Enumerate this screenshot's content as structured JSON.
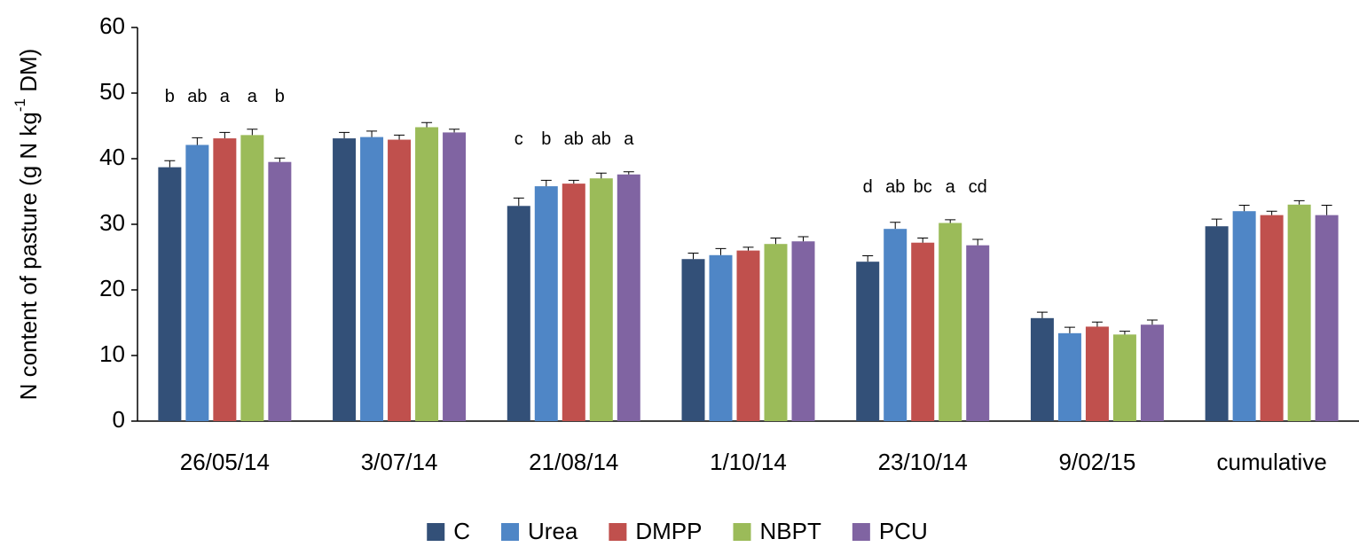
{
  "chart_data": {
    "type": "bar",
    "ylabel": [
      "N content of pasture (g N kg",
      "-1",
      " DM)"
    ],
    "categories": [
      "26/05/14",
      "3/07/14",
      "21/08/14",
      "1/10/14",
      "23/10/14",
      "9/02/15",
      "cumulative"
    ],
    "series": [
      {
        "name": "C",
        "color": "#335078",
        "values": [
          38.7,
          43.1,
          32.8,
          24.7,
          24.3,
          15.7,
          29.7
        ],
        "errors": [
          1.0,
          0.9,
          1.2,
          0.9,
          0.9,
          0.9,
          1.1
        ],
        "letters": [
          "b",
          null,
          "c",
          null,
          "d",
          null,
          null
        ]
      },
      {
        "name": "Urea",
        "color": "#4f86c6",
        "values": [
          42.1,
          43.3,
          35.8,
          25.3,
          29.3,
          13.4,
          32.0
        ],
        "errors": [
          1.1,
          0.9,
          0.9,
          1.0,
          1.0,
          0.9,
          0.9
        ],
        "letters": [
          "ab",
          null,
          "b",
          null,
          "ab",
          null,
          null
        ]
      },
      {
        "name": "DMPP",
        "color": "#c0504d",
        "values": [
          43.1,
          42.9,
          36.2,
          26.0,
          27.2,
          14.4,
          31.4
        ],
        "errors": [
          0.9,
          0.7,
          0.5,
          0.5,
          0.7,
          0.7,
          0.6
        ],
        "letters": [
          "a",
          null,
          "ab",
          null,
          "bc",
          null,
          null
        ]
      },
      {
        "name": "NBPT",
        "color": "#9bbb59",
        "values": [
          43.6,
          44.8,
          37.0,
          27.0,
          30.2,
          13.2,
          33.0
        ],
        "errors": [
          0.9,
          0.7,
          0.8,
          0.9,
          0.5,
          0.5,
          0.6
        ],
        "letters": [
          "a",
          null,
          "ab",
          null,
          "a",
          null,
          null
        ]
      },
      {
        "name": "PCU",
        "color": "#8064a2",
        "values": [
          39.5,
          44.0,
          37.6,
          27.4,
          26.8,
          14.7,
          31.4
        ],
        "errors": [
          0.6,
          0.5,
          0.4,
          0.7,
          0.9,
          0.7,
          1.5
        ],
        "letters": [
          "b",
          null,
          "a",
          null,
          "cd",
          null,
          null
        ]
      }
    ],
    "ylim": [
      0,
      60
    ],
    "yticks": [
      0,
      10,
      20,
      30,
      40,
      50,
      60
    ],
    "grid": false,
    "legend": "bottom"
  }
}
